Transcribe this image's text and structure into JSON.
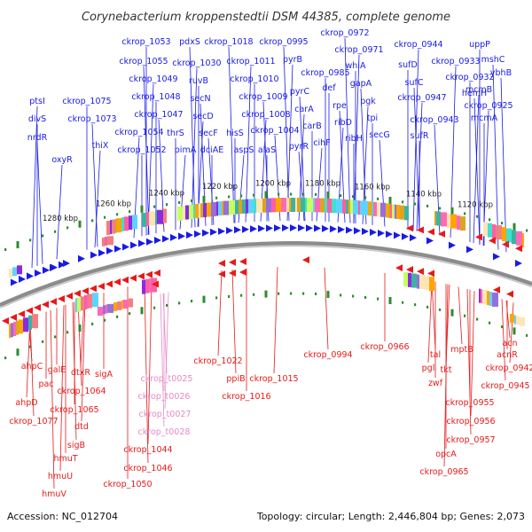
{
  "title": "Corynebacterium kroppenstedtii DSM 44385, complete genome",
  "footer": {
    "accession": "Accession: NC_012704",
    "topology": "Topology: circular; Length: 2,446,804 bp; Genes: 2,073"
  },
  "colors": {
    "forward": "#1a1ae6",
    "reverse": "#e61a1a",
    "trna": "#e68ac4",
    "backbone": "#8c8c8c",
    "tick": "#2e8b2e"
  },
  "kbp_labels": [
    "1280 kbp",
    "1260 kbp",
    "1240 kbp",
    "1220 kbp",
    "1200 kbp",
    "1180 kbp",
    "1160 kbp",
    "1140 kbp",
    "1120 kbp"
  ],
  "forward_genes": [
    "ptsI",
    "divS",
    "nrdR",
    "oxyR",
    "ckrop_1075",
    "ckrop_1073",
    "thiX",
    "ckrop_1053",
    "ckrop_1055",
    "ckrop_1049",
    "ckrop_1048",
    "ckrop_1047",
    "ckrop_1054",
    "ckrop_1052",
    "pdxS",
    "ckrop_1030",
    "ruvB",
    "secN",
    "secD",
    "thrS",
    "secF",
    "pimA",
    "dciAE",
    "ckrop_1018",
    "ckrop_1011",
    "ckrop_1010",
    "ckrop_1009",
    "ckrop_1008",
    "hisS",
    "ckrop_1004",
    "aspS",
    "alaS",
    "ckrop_0995",
    "pyrB",
    "ckrop_0985",
    "pyrC",
    "carA",
    "carB",
    "pyrR",
    "cihF",
    "def",
    "rpe",
    "ribD",
    "ribH",
    "ckrop_0972",
    "ckrop_0971",
    "whiA",
    "gapA",
    "pgk",
    "tpi",
    "secG",
    "ckrop_0944",
    "sufD",
    "sufC",
    "ckrop_0947",
    "sufR",
    "ckrop_0943",
    "ckrop_0933",
    "ckrop_0932",
    "hemH",
    "ckrop_0925",
    "uppP",
    "mshC",
    "mcmB",
    "mcmA",
    "ybhB"
  ],
  "reverse_genes": [
    "ahpC",
    "pac",
    "ahpD",
    "ckrop_1077",
    "galE",
    "dtxR",
    "ckrop_1064",
    "ckrop_1065",
    "dtd",
    "sigB",
    "hmuT",
    "hmuU",
    "hmuV",
    "sigA",
    "ckrop_1044",
    "ckrop_1046",
    "ckrop_1050",
    "ckrop_1022",
    "ppiB",
    "ckrop_1016",
    "ckrop_1015",
    "ckrop_0994",
    "ckrop_0966",
    "pgl",
    "tal",
    "zwf",
    "tkt",
    "mptB",
    "ckrop_0955",
    "ckrop_0956",
    "ckrop_0957",
    "opcA",
    "ckrop_0965",
    "acn",
    "acnR",
    "ckrop_0942",
    "ckrop_0945"
  ],
  "trna_genes": [
    "ckrop_t0025",
    "ckrop_t0026",
    "ckrop_t0027",
    "ckrop_t0028"
  ]
}
